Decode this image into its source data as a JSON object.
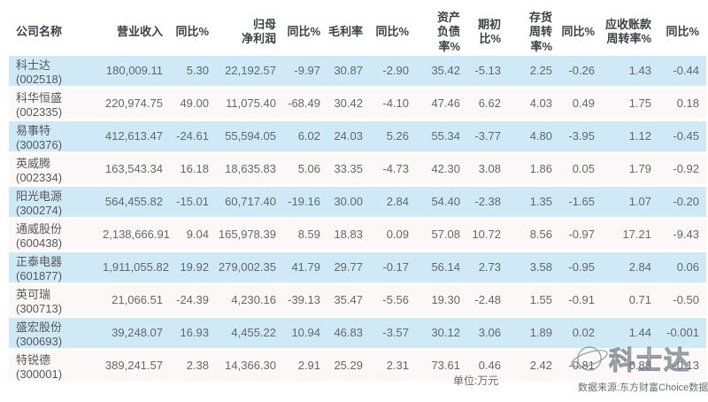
{
  "chart_data": {
    "type": "table",
    "columns": [
      "公司名称",
      "营业收入",
      "同比%",
      "归母净利润",
      "同比%",
      "毛利率",
      "同比%",
      "资产负债率%",
      "期初比%",
      "存货周转率%",
      "同比%",
      "应收账款周转率%",
      "同比%"
    ],
    "header_display": [
      "公司名称",
      "营业收入",
      "同比%",
      "归母\n净利润",
      "同比%",
      "毛利率",
      "同比%",
      "资产\n负债率%",
      "期初\n比%",
      "存货\n周转率%",
      "同比%",
      "应收账款\n周转率%",
      "同比%"
    ],
    "rows": [
      {
        "name": "科士达(002518)",
        "values": [
          "180,009.11",
          "5.30",
          "22,192.57",
          "-9.97",
          "30.87",
          "-2.90",
          "35.42",
          "-5.13",
          "2.25",
          "-0.26",
          "1.43",
          "-0.44"
        ]
      },
      {
        "name": "科华恒盛(002335)",
        "values": [
          "220,974.75",
          "49.00",
          "11,075.40",
          "-68.49",
          "30.42",
          "-4.10",
          "47.46",
          "6.62",
          "4.03",
          "0.49",
          "1.75",
          "0.18"
        ]
      },
      {
        "name": "易事特(300376)",
        "values": [
          "412,613.47",
          "-24.61",
          "55,594.05",
          "6.02",
          "24.03",
          "5.26",
          "55.34",
          "-3.77",
          "4.80",
          "-3.95",
          "1.12",
          "-0.45"
        ]
      },
      {
        "name": "英威腾(002334)",
        "values": [
          "163,543.34",
          "16.18",
          "18,635.83",
          "5.06",
          "33.35",
          "-4.73",
          "42.30",
          "3.08",
          "1.86",
          "0.05",
          "1.79",
          "-0.92"
        ]
      },
      {
        "name": "阳光电源(300274)",
        "values": [
          "564,455.82",
          "-15.01",
          "60,717.40",
          "-19.16",
          "30.00",
          "2.84",
          "54.40",
          "-2.38",
          "1.35",
          "-1.65",
          "1.07",
          "-0.20"
        ]
      },
      {
        "name": "通威股份(600438)",
        "values": [
          "2,138,666.91",
          "9.04",
          "165,978.39",
          "8.59",
          "18.83",
          "0.09",
          "57.08",
          "10.72",
          "8.56",
          "-0.97",
          "17.21",
          "-9.43"
        ]
      },
      {
        "name": "正泰电器(601877)",
        "values": [
          "1,911,055.82",
          "19.92",
          "279,002.35",
          "41.79",
          "29.77",
          "-0.17",
          "56.14",
          "2.73",
          "3.58",
          "-0.95",
          "2.84",
          "0.06"
        ]
      },
      {
        "name": "英可瑞(300713)",
        "values": [
          "21,066.51",
          "-24.39",
          "4,230.16",
          "-39.13",
          "35.47",
          "-5.56",
          "19.30",
          "-2.48",
          "1.55",
          "-0.91",
          "0.71",
          "-0.50"
        ]
      },
      {
        "name": "盛宏股份(300693)",
        "values": [
          "39,248.07",
          "16.93",
          "4,455.22",
          "10.94",
          "46.83",
          "-3.57",
          "30.12",
          "3.06",
          "1.89",
          "0.02",
          "1.44",
          "-0.001"
        ]
      },
      {
        "name": "特锐德(300001)",
        "values": [
          "389,241.57",
          "2.38",
          "14,366.30",
          "2.91",
          "25.29",
          "2.31",
          "73.61",
          "0.46",
          "2.42",
          "-0.81",
          "0.88",
          "-0.13"
        ]
      }
    ],
    "unit": "万元"
  },
  "footer": {
    "unit_note": "单位:万元",
    "source_note": "数据来源:东方财富Choice数据"
  },
  "watermark": {
    "text": "科士达"
  },
  "colors": {
    "row_blue": "#cfe9f7",
    "row_plain": "#fdf8f8",
    "header_text": "#3e4144",
    "body_text": "#63676b",
    "name_text": "#54575a",
    "watermark_stroke": "#68737d"
  }
}
